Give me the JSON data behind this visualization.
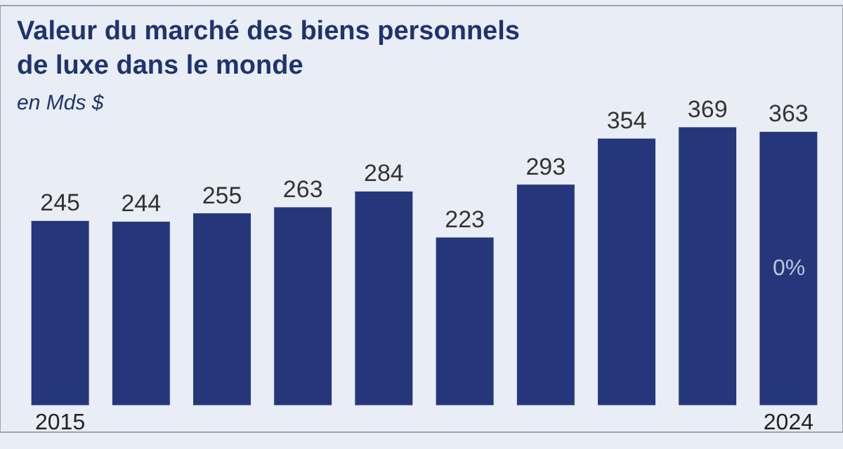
{
  "chart_data": {
    "type": "bar",
    "title": "Valeur du marché des biens personnels\nde luxe dans le monde",
    "subtitle": "en Mds $",
    "categories": [
      "2015",
      null,
      null,
      null,
      null,
      null,
      null,
      null,
      null,
      "2024"
    ],
    "values": [
      245,
      244,
      255,
      263,
      284,
      223,
      293,
      354,
      369,
      363
    ],
    "color": "#25377a",
    "data_labels": true,
    "tick_labels": "x",
    "grid": false,
    "legend": false,
    "annotations": [
      "0%"
    ]
  }
}
